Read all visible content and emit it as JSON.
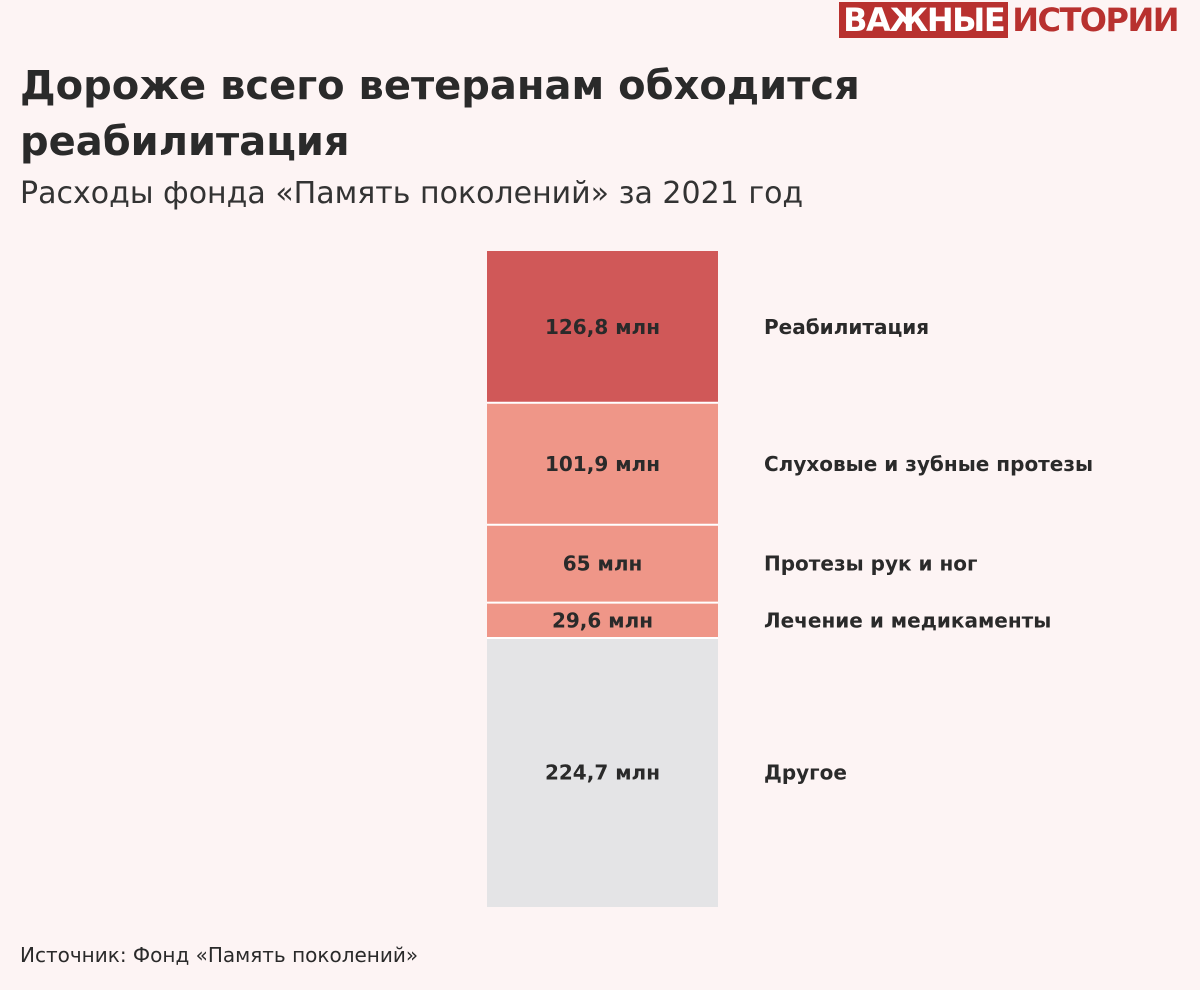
{
  "brand": {
    "name_part1": "ВАЖНЫЕ",
    "name_part2": "ИСТОРИИ",
    "color": "#b8312f"
  },
  "title": "Дороже всего ветеранам обходится реабилитация",
  "subtitle": "Расходы фонда «Память поколений» за 2021 год",
  "source": "Источник: Фонд «Память поколений»",
  "chart_data": {
    "type": "bar",
    "orientation": "stacked-vertical",
    "unit": "млн",
    "categories": [
      "Реабилитация",
      "Слуховые и зубные протезы",
      "Протезы рук и ног",
      "Лечение и медикаменты",
      "Другое"
    ],
    "values": [
      126.8,
      101.9,
      65,
      29.6,
      224.7
    ],
    "value_labels": [
      "126,8 млн",
      "101,9 млн",
      "65 млн",
      "29,6 млн",
      "224,7 млн"
    ],
    "colors": [
      "#d05858",
      "#ef9688",
      "#ef9688",
      "#ef9688",
      "#e4e4e6"
    ],
    "label_color": "#2a2a2a",
    "segment_separator_color": "#ffffff",
    "legend": "right of bar",
    "grid": false
  }
}
